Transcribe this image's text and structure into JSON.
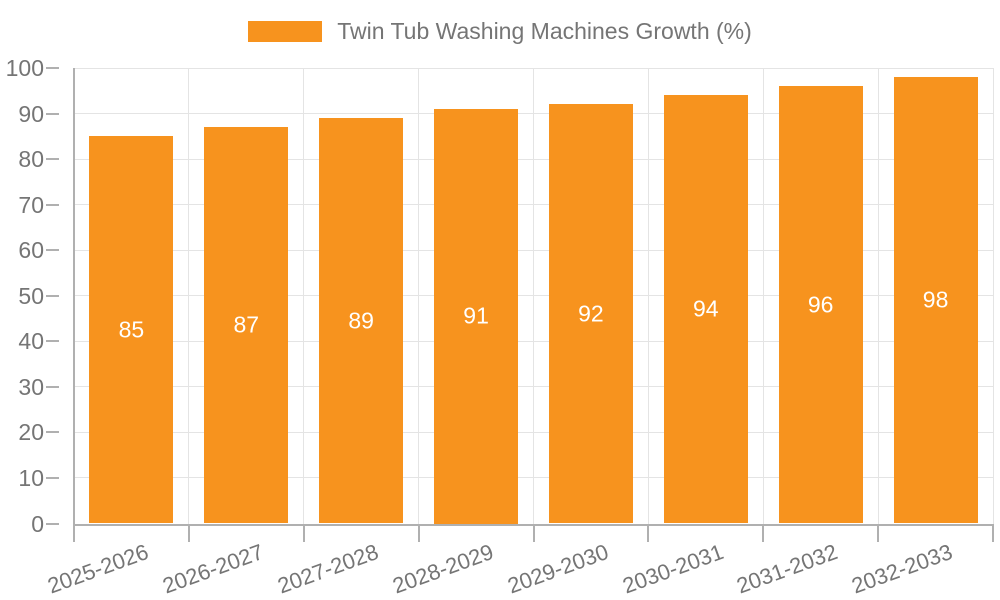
{
  "chart_data": {
    "type": "bar",
    "title": "Twin Tub Washing Machines Growth (%)",
    "categories": [
      "2025-2026",
      "2026-2027",
      "2027-2028",
      "2028-2029",
      "2029-2030",
      "2030-2031",
      "2031-2032",
      "2032-2033"
    ],
    "values": [
      85,
      87,
      89,
      91,
      92,
      94,
      96,
      98
    ],
    "value_labels": [
      "85",
      "87",
      "89",
      "91",
      "92",
      "94",
      "96",
      "98"
    ],
    "xlabel": "",
    "ylabel": "",
    "ylim": [
      0,
      100
    ],
    "ytick_step": 10,
    "ytick_labels": [
      "0",
      "10",
      "20",
      "30",
      "40",
      "50",
      "60",
      "70",
      "80",
      "90",
      "100"
    ],
    "grid": true,
    "legend_position": "top-center",
    "colors": {
      "bar": "#f7931e",
      "value_label": "#ffffff",
      "axis_text": "#757575",
      "axis_line": "#b0b0b0",
      "gridline": "#e4e4e4"
    }
  }
}
